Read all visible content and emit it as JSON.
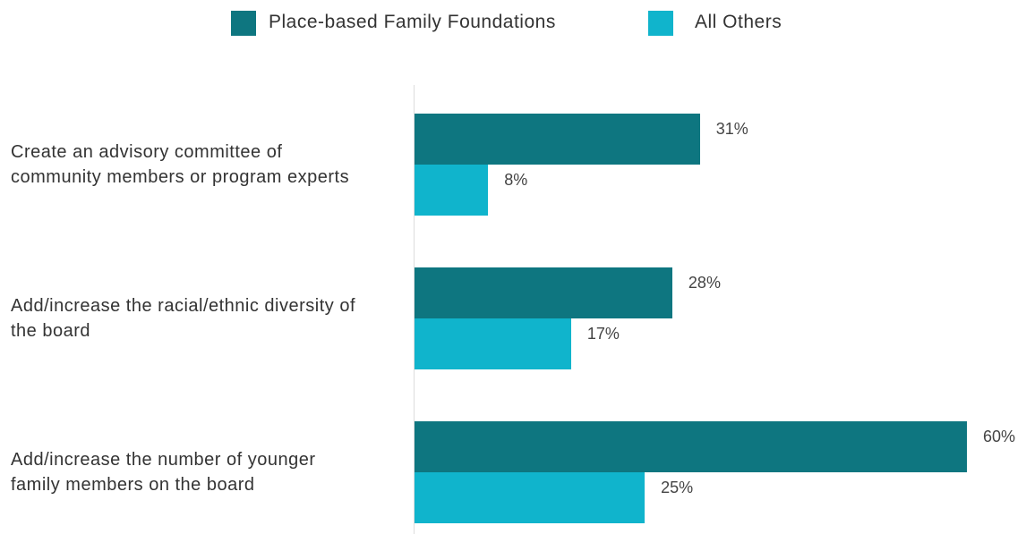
{
  "chart_data": {
    "type": "bar",
    "orientation": "horizontal",
    "categories": [
      "Create an advisory committee of community members or program experts",
      "Add/increase the racial/ethnic diversity of the board",
      "Add/increase the number of younger family members on the board"
    ],
    "series": [
      {
        "name": "Place-based Family Foundations",
        "color": "#0e7680",
        "values": [
          31,
          28,
          60
        ],
        "value_labels": [
          "31%",
          "28%",
          "60%"
        ]
      },
      {
        "name": "All Others",
        "color": "#10b4cc",
        "values": [
          8,
          17,
          25
        ],
        "value_labels": [
          "8%",
          "17%",
          "25%"
        ]
      }
    ],
    "legend": "top"
  }
}
